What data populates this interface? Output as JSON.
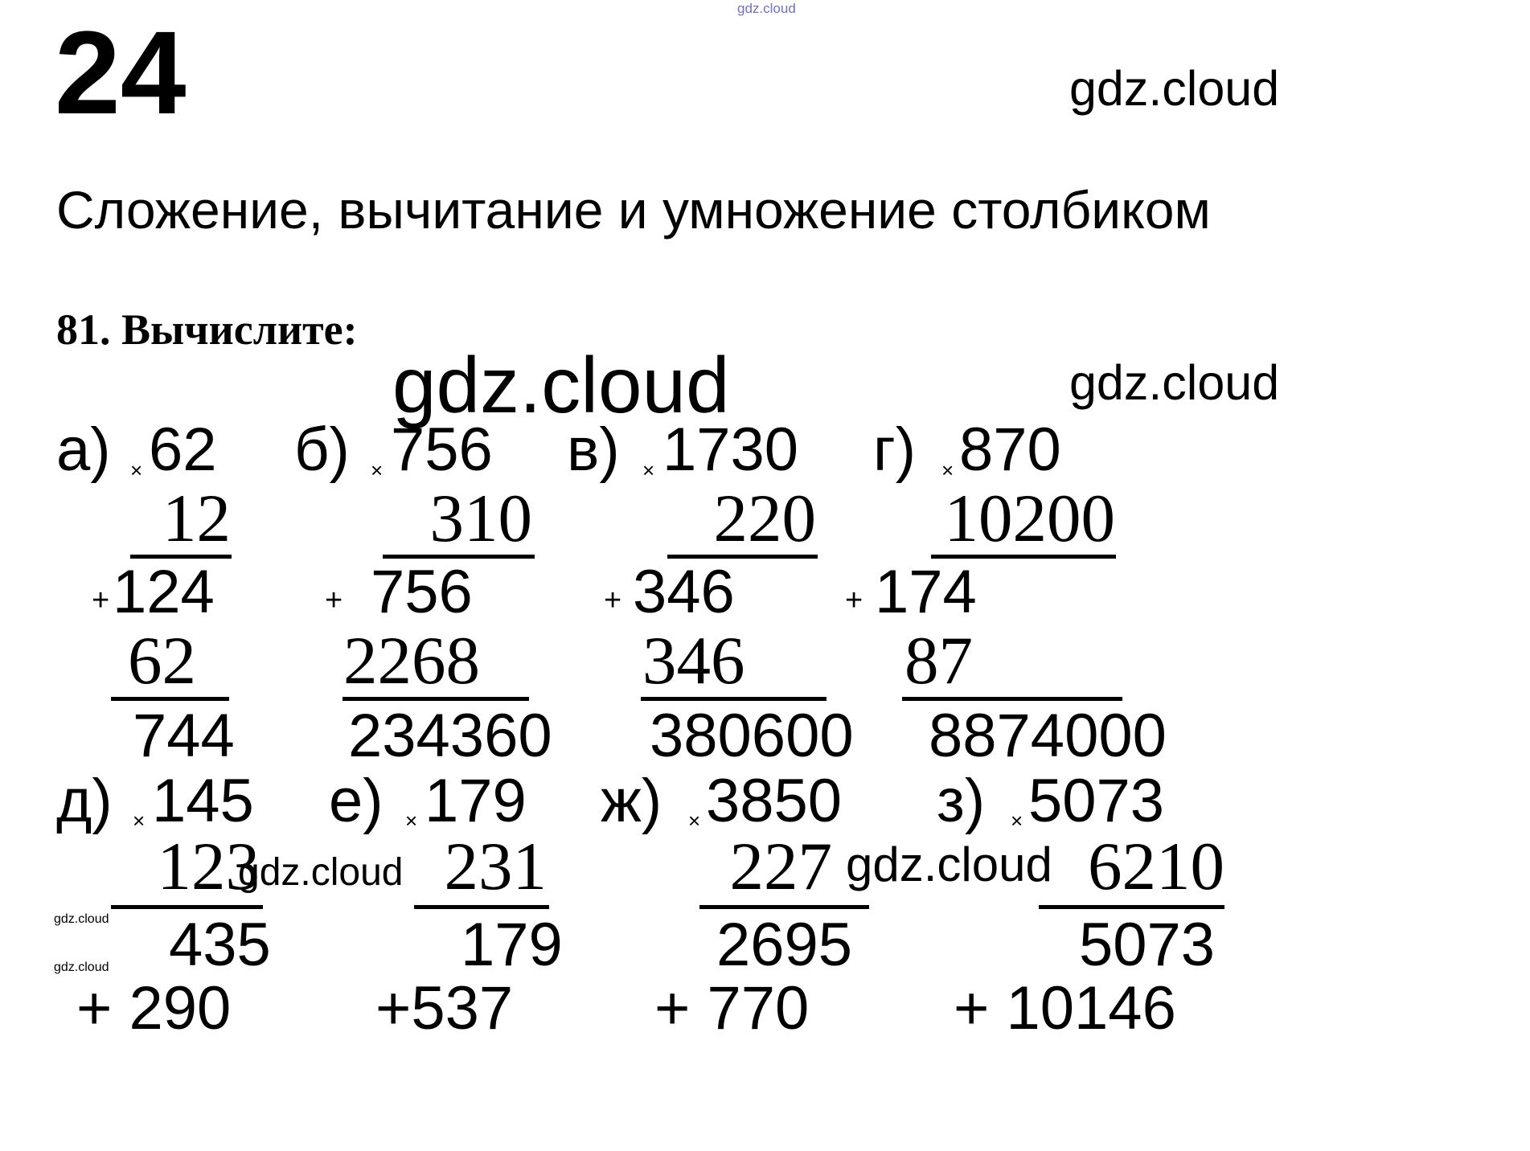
{
  "header": {
    "page_number": "24",
    "topic_title": "Сложение, вычитание и умножение столбиком",
    "exercise_title": "81. Вычислите:"
  },
  "watermark": {
    "text": "gdz.cloud",
    "top_color": "#6f6fc4"
  },
  "signs": {
    "times": "×",
    "plus": "+"
  },
  "problems": [
    {
      "label": "а)",
      "a": "62",
      "b": "12",
      "p1": "124",
      "p2": "62",
      "result": "744"
    },
    {
      "label": "б)",
      "a": "756",
      "b": "310",
      "p1": "756",
      "p2": "2268",
      "result": "234360"
    },
    {
      "label": "в)",
      "a": "1730",
      "b": "220",
      "p1": "346",
      "p2": "346",
      "result": "380600"
    },
    {
      "label": "г)",
      "a": "870",
      "b": "10200",
      "p1": "174",
      "p2": "87",
      "result": "8874000"
    },
    {
      "label": "д)",
      "a": "145",
      "b": "123",
      "p1": "435",
      "p2": "+ 290"
    },
    {
      "label": "е)",
      "a": "179",
      "b": "231",
      "p1": "179",
      "p2": "+537"
    },
    {
      "label": "ж)",
      "a": "3850",
      "b": "227",
      "p1": "2695",
      "p2": "+ 770"
    },
    {
      "label": "з)",
      "a": "5073",
      "b": "6210",
      "p1": "5073",
      "p2": "+ 10146"
    }
  ]
}
